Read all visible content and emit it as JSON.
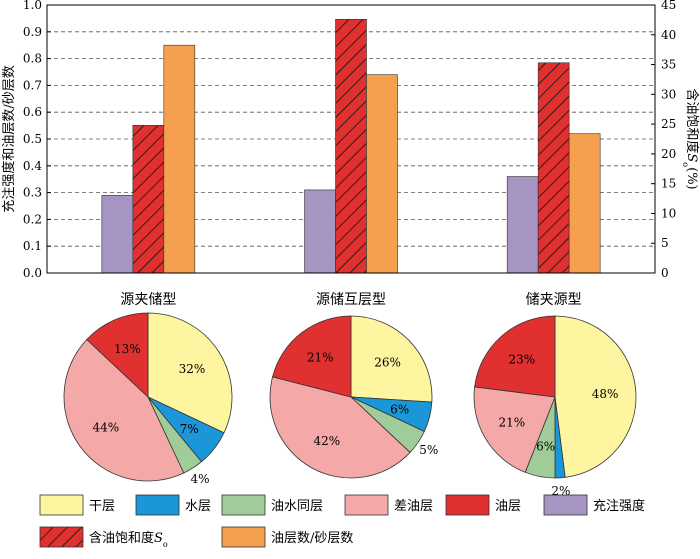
{
  "chart_data": [
    {
      "type": "bar",
      "categories": [
        "源夹储型",
        "源储互层型",
        "储夹源型"
      ],
      "ylabel": "充注强度和油层数/砂层数",
      "ylabel_right": "含油饱和度S_o(%)",
      "ylim": [
        0,
        1.0
      ],
      "ylim_right": [
        0,
        45
      ],
      "yticks": [
        "0.0",
        "0.1",
        "0.2",
        "0.3",
        "0.4",
        "0.5",
        "0.6",
        "0.7",
        "0.8",
        "0.9",
        "1.0"
      ],
      "yticks_right": [
        "0",
        "5",
        "10",
        "15",
        "20",
        "25",
        "30",
        "35",
        "40",
        "45"
      ],
      "grid": true,
      "series": [
        {
          "name": "充注强度",
          "axis": "left",
          "color": "#a694c2",
          "values": [
            0.29,
            0.31,
            0.36
          ]
        },
        {
          "name": "含油饱和度S_o",
          "axis": "right",
          "color": "#e03030",
          "hatch": true,
          "values": [
            24.8,
            42.6,
            35.3
          ]
        },
        {
          "name": "油层数/砂层数",
          "axis": "left",
          "color": "#f4a04e",
          "values": [
            0.85,
            0.74,
            0.52
          ]
        }
      ]
    },
    {
      "type": "pie",
      "title": "源夹储型",
      "slices": [
        {
          "name": "干层",
          "value": 32,
          "label": "32%",
          "color": "#fdf5a0"
        },
        {
          "name": "水层",
          "value": 7,
          "label": "7%",
          "color": "#1b96d8"
        },
        {
          "name": "油水同层",
          "value": 4,
          "label": "4%",
          "color": "#9fcc98"
        },
        {
          "name": "差油层",
          "value": 44,
          "label": "44%",
          "color": "#f4a8a8"
        },
        {
          "name": "油层",
          "value": 13,
          "label": "13%",
          "color": "#e03030"
        }
      ]
    },
    {
      "type": "pie",
      "title": "源储互层型",
      "slices": [
        {
          "name": "干层",
          "value": 26,
          "label": "26%",
          "color": "#fdf5a0"
        },
        {
          "name": "水层",
          "value": 6,
          "label": "6%",
          "color": "#1b96d8"
        },
        {
          "name": "油水同层",
          "value": 5,
          "label": "5%",
          "color": "#9fcc98"
        },
        {
          "name": "差油层",
          "value": 42,
          "label": "42%",
          "color": "#f4a8a8"
        },
        {
          "name": "油层",
          "value": 21,
          "label": "21%",
          "color": "#e03030"
        }
      ]
    },
    {
      "type": "pie",
      "title": "储夹源型",
      "slices": [
        {
          "name": "干层",
          "value": 48,
          "label": "48%",
          "color": "#fdf5a0"
        },
        {
          "name": "水层",
          "value": 2,
          "label": "2%",
          "color": "#1b96d8"
        },
        {
          "name": "油水同层",
          "value": 6,
          "label": "6%",
          "color": "#9fcc98"
        },
        {
          "name": "差油层",
          "value": 21,
          "label": "21%",
          "color": "#f4a8a8"
        },
        {
          "name": "油层",
          "value": 23,
          "label": "23%",
          "color": "#e03030"
        }
      ]
    }
  ],
  "legend": [
    {
      "label": "干层",
      "color": "#fdf5a0"
    },
    {
      "label": "水层",
      "color": "#1b96d8"
    },
    {
      "label": "油水同层",
      "color": "#9fcc98"
    },
    {
      "label": "差油层",
      "color": "#f4a8a8"
    },
    {
      "label": "油层",
      "color": "#e03030"
    },
    {
      "label": "充注强度",
      "color": "#a694c2"
    },
    {
      "label": "含油饱和度S_o",
      "color": "#e03030",
      "hatch": true
    },
    {
      "label": "油层数/砂层数",
      "color": "#f4a04e"
    }
  ]
}
